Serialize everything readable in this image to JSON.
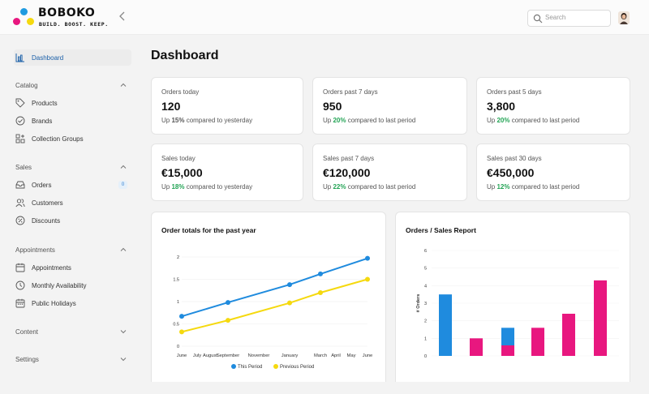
{
  "header": {
    "brand": "BOBOKO",
    "tagline": "BUILD. BOOST. KEEP.",
    "search_placeholder": "Search"
  },
  "sidebar": {
    "dashboard": "Dashboard",
    "groups": {
      "catalog": "Catalog",
      "sales": "Sales",
      "appointments": "Appointments",
      "content": "Content",
      "settings": "Settings"
    },
    "items": {
      "products": "Products",
      "brands": "Brands",
      "collection_groups": "Collection Groups",
      "orders": "Orders",
      "orders_badge": "0",
      "customers": "Customers",
      "discounts": "Discounts",
      "appointments": "Appointments",
      "monthly_availability": "Monthly Availability",
      "public_holidays": "Public Holidays"
    }
  },
  "main": {
    "title": "Dashboard",
    "stats": [
      {
        "label": "Orders today",
        "value": "120",
        "prefix": "Up ",
        "change": "15%",
        "suffix": " compared to yesterday",
        "highlight": true
      },
      {
        "label": "Orders past 7 days",
        "value": "950",
        "prefix": "Up ",
        "change": "20%",
        "suffix": " compared to last period",
        "highlight": false
      },
      {
        "label": "Orders past 5 days",
        "value": "3,800",
        "prefix": "Up ",
        "change": "20%",
        "suffix": " compared to last period",
        "highlight": false
      },
      {
        "label": "Sales today",
        "value": "€15,000",
        "prefix": "Up ",
        "change": "18%",
        "suffix": " compared to yesterday",
        "highlight": false
      },
      {
        "label": "Sales past 7 days",
        "value": "€120,000",
        "prefix": "Up ",
        "change": "22%",
        "suffix": " compared to last period",
        "highlight": false
      },
      {
        "label": "Sales past 30 days",
        "value": "€450,000",
        "prefix": "Up ",
        "change": "12%",
        "suffix": " compared to last period",
        "highlight": false
      }
    ],
    "line_panel_title": "Order totals for the past year",
    "bar_panel_title": "Orders / Sales Report"
  },
  "colors": {
    "accent": "#1a5fa8",
    "positive": "#23a455",
    "line_this": "#1f8bde",
    "line_prev": "#f5d90f",
    "bar_blue": "#1f8bde",
    "bar_pink": "#e8177f"
  },
  "chart_data": [
    {
      "type": "line",
      "title": "Order totals for the past year",
      "x_ticks": [
        "June",
        "July",
        "August",
        "September",
        "November",
        "January",
        "March",
        "April",
        "May",
        "June"
      ],
      "y_ticks": [
        "0",
        "0.5",
        "1",
        "1.5",
        "2"
      ],
      "ylim": [
        0,
        2
      ],
      "series": [
        {
          "name": "This Period",
          "x": [
            "June",
            "September",
            "January",
            "March",
            "June"
          ],
          "values": [
            0.67,
            0.98,
            1.38,
            1.62,
            1.97
          ]
        },
        {
          "name": "Previous Period",
          "x": [
            "June",
            "September",
            "January",
            "March",
            "June"
          ],
          "values": [
            0.32,
            0.58,
            0.97,
            1.2,
            1.5
          ]
        }
      ],
      "legend": "bottom"
    },
    {
      "type": "bar",
      "title": "Orders / Sales Report",
      "ylabel": "# Orders",
      "y_ticks": [
        "0",
        "1",
        "2",
        "3",
        "4",
        "5",
        "6"
      ],
      "ylim": [
        0,
        6
      ],
      "bars": [
        {
          "blue": 3.5,
          "pink": 0
        },
        {
          "blue": 0,
          "pink": 1.0
        },
        {
          "blue": 1.0,
          "pink": 0.6
        },
        {
          "blue": 0,
          "pink": 1.6
        },
        {
          "blue": 0,
          "pink": 2.4
        },
        {
          "blue": 0,
          "pink": 4.3
        }
      ]
    }
  ]
}
